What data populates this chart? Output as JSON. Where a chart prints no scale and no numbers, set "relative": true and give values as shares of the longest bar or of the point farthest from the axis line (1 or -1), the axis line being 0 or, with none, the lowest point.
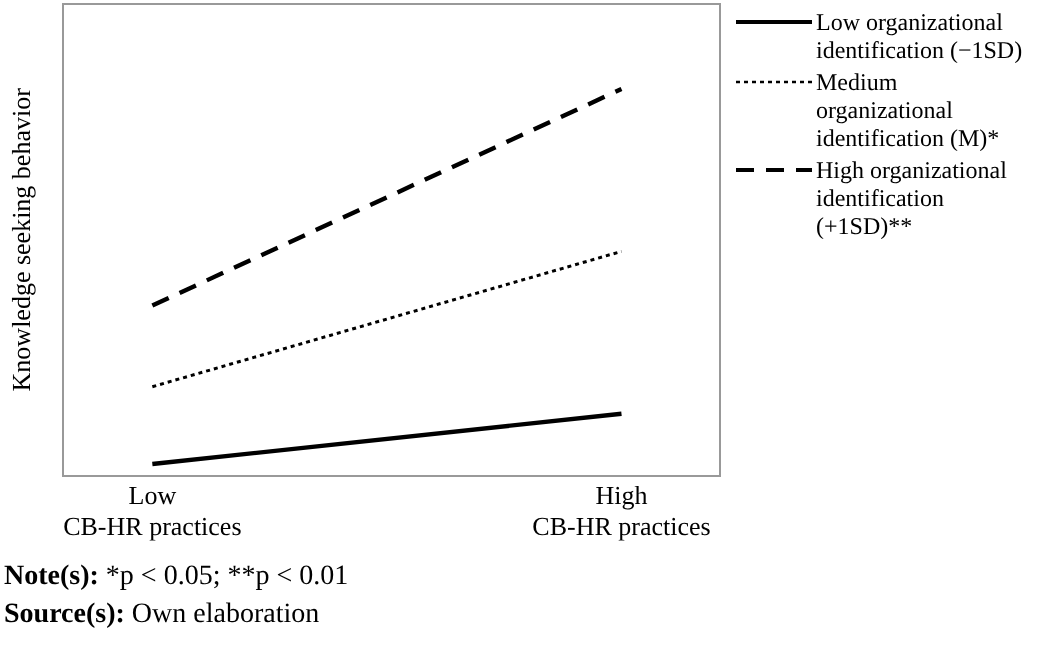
{
  "chart_data": {
    "type": "line",
    "ylabel": "Knowledge seeking behavior",
    "categories": [
      "Low\nCB-HR practices",
      "High\nCB-HR practices"
    ],
    "relative": true,
    "series": [
      {
        "name": "Low organizational identification (−1SD)",
        "color": "#000000",
        "line_style": "solid",
        "values": [
          0.03,
          0.16
        ]
      },
      {
        "name": "Medium organizational identification (M)*",
        "color": "#000000",
        "line_style": "dotted",
        "values": [
          0.23,
          0.58
        ]
      },
      {
        "name": "High organizational identification (+1SD)**",
        "color": "#000000",
        "line_style": "dashed",
        "values": [
          0.44,
          1
        ]
      }
    ],
    "legend": "right",
    "grid": false,
    "marker": "none",
    "annotations": [
      "Note(s): *p < 0.05; **p < 0.01",
      "Source(s): Own elaboration"
    ]
  }
}
